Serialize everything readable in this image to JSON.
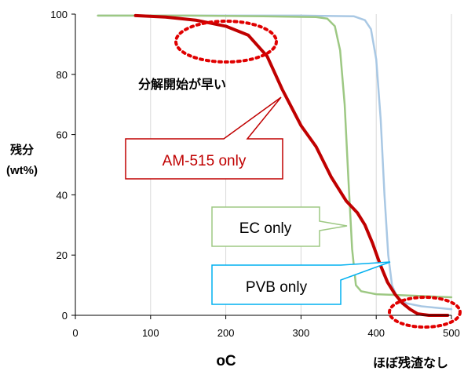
{
  "chart_data": {
    "type": "line",
    "xlabel": "oC",
    "ylabel": [
      "残分",
      "(wt%)"
    ],
    "xlim": [
      0,
      500
    ],
    "ylim": [
      0,
      100
    ],
    "x_ticks": [
      "0",
      "100",
      "200",
      "300",
      "400",
      "500"
    ],
    "y_ticks": [
      "0",
      "20",
      "40",
      "60",
      "80",
      "100"
    ],
    "grid": "vertical",
    "series": [
      {
        "name": "AM-515 only",
        "color": "#c00000",
        "points": [
          [
            80,
            99.5
          ],
          [
            120,
            99
          ],
          [
            160,
            98
          ],
          [
            200,
            96
          ],
          [
            230,
            93
          ],
          [
            255,
            86
          ],
          [
            275,
            75
          ],
          [
            300,
            63
          ],
          [
            320,
            56
          ],
          [
            340,
            46
          ],
          [
            360,
            38
          ],
          [
            375,
            34
          ],
          [
            385,
            30
          ],
          [
            395,
            24
          ],
          [
            405,
            17
          ],
          [
            415,
            11
          ],
          [
            425,
            7
          ],
          [
            435,
            4
          ],
          [
            445,
            2
          ],
          [
            455,
            0.5
          ],
          [
            470,
            0
          ],
          [
            495,
            0
          ]
        ]
      },
      {
        "name": "EC only",
        "color": "#9dc883",
        "points": [
          [
            30,
            99.5
          ],
          [
            150,
            99.5
          ],
          [
            250,
            99.3
          ],
          [
            320,
            99
          ],
          [
            335,
            98.5
          ],
          [
            345,
            96
          ],
          [
            352,
            88
          ],
          [
            358,
            70
          ],
          [
            363,
            45
          ],
          [
            368,
            22
          ],
          [
            373,
            10
          ],
          [
            380,
            8
          ],
          [
            400,
            7
          ],
          [
            450,
            6.5
          ],
          [
            500,
            6
          ]
        ]
      },
      {
        "name": "PVB only",
        "color": "#a9c8e4",
        "points": [
          [
            30,
            99.5
          ],
          [
            150,
            99.5
          ],
          [
            300,
            99.5
          ],
          [
            370,
            99.3
          ],
          [
            385,
            98
          ],
          [
            393,
            95
          ],
          [
            400,
            85
          ],
          [
            406,
            65
          ],
          [
            411,
            40
          ],
          [
            416,
            20
          ],
          [
            421,
            10
          ],
          [
            428,
            6
          ],
          [
            440,
            4
          ],
          [
            460,
            3
          ],
          [
            480,
            2.5
          ],
          [
            500,
            2
          ]
        ]
      }
    ],
    "annotations": {
      "am515_label": "AM-515 only",
      "ec_label": "EC only",
      "pvb_label": "PVB only",
      "early_decomp": "分解開始が早い",
      "no_residue": "ほぼ残渣なし"
    }
  }
}
